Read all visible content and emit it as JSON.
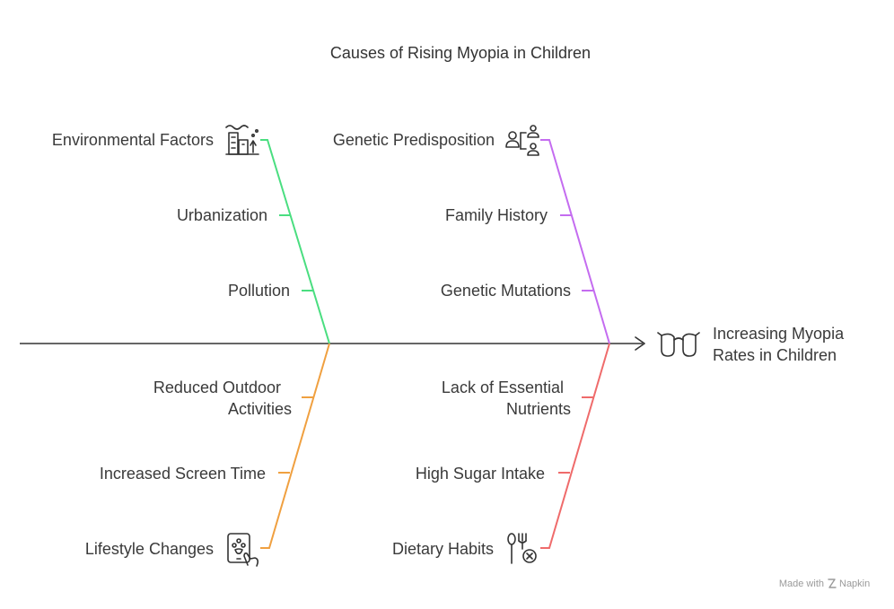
{
  "title": "Causes of Rising Myopia in Children",
  "effect": {
    "line1": "Increasing Myopia",
    "line2": "Rates in Children",
    "icon": "glasses-icon"
  },
  "categories": {
    "environmental": {
      "label": "Environmental Factors",
      "icon": "city-pollution-icon",
      "color": "#4ade80",
      "causes": [
        "Urbanization",
        "Pollution"
      ]
    },
    "genetic": {
      "label": "Genetic Predisposition",
      "icon": "family-tree-icon",
      "color": "#c46cf0",
      "causes": [
        "Family History",
        "Genetic Mutations"
      ]
    },
    "lifestyle": {
      "label": "Lifestyle Changes",
      "icon": "tablet-touch-icon",
      "color": "#f0a040",
      "causes": [
        [
          "Reduced Outdoor",
          "Activities"
        ],
        "Increased Screen Time"
      ]
    },
    "dietary": {
      "label": "Dietary Habits",
      "icon": "no-food-icon",
      "color": "#ef6b6b",
      "causes": [
        [
          "Lack of Essential",
          "Nutrients"
        ],
        "High Sugar Intake"
      ]
    }
  },
  "watermark": {
    "prefix": "Made with",
    "brand": "Napkin"
  }
}
